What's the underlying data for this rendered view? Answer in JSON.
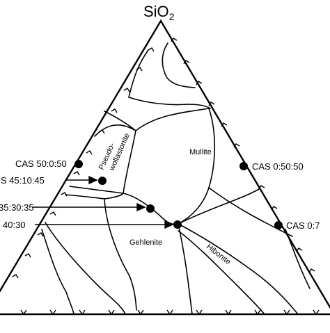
{
  "apex_label": {
    "main": "SiO",
    "subscript": "2"
  },
  "fields": {
    "pseudo_1": "Pseudo-",
    "pseudo_2": "wollastonite",
    "mullite": "Mullite",
    "gehlenite": "Gehlenite",
    "hibonite": "Hibonite"
  },
  "points": {
    "cas_50_0_50": "CAS 50:0:50",
    "cas_45_10_45": "S 45:10:45",
    "cas_35_30_35": "35:30:35",
    "cas_40_30": "40:30",
    "cas_0_50_50": "CAS 0:50:50",
    "cas_0_7": "CAS 0:7"
  },
  "colors": {
    "ink": "#000000",
    "background": "#ffffff"
  }
}
